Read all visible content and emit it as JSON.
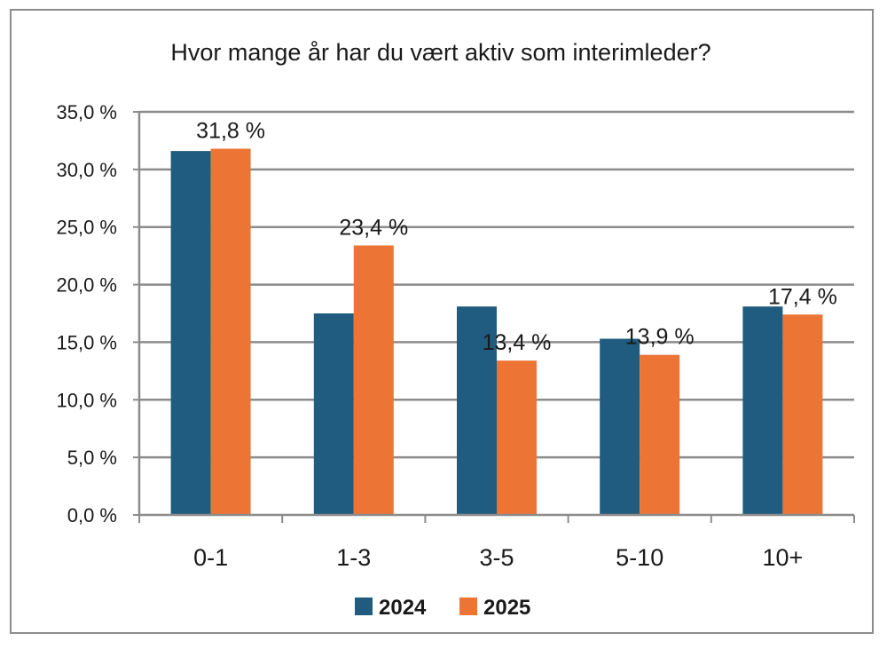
{
  "chart_data": {
    "type": "bar",
    "title": "Hvor mange år har du vært aktiv som interimleder?",
    "categories": [
      "0-1",
      "1-3",
      "3-5",
      "5-10",
      "10+"
    ],
    "series": [
      {
        "name": "2024",
        "color": "#1f5c7f",
        "values": [
          31.6,
          17.5,
          18.1,
          15.3,
          18.1
        ],
        "data_labels": [
          "",
          "",
          "",
          "",
          ""
        ]
      },
      {
        "name": "2025",
        "color": "#ec7434",
        "values": [
          31.8,
          23.4,
          13.4,
          13.9,
          17.4
        ],
        "data_labels": [
          "31,8 %",
          "23,4 %",
          "13,4 %",
          "13,9 %",
          "17,4 %"
        ]
      }
    ],
    "ylim": [
      0,
      35
    ],
    "yticks": [
      0,
      5,
      10,
      15,
      20,
      25,
      30,
      35
    ],
    "ytick_labels": [
      "0,0 %",
      "5,0 %",
      "10,0 %",
      "15,0 %",
      "20,0 %",
      "25,0 %",
      "30,0 %",
      "35,0 %"
    ],
    "grid": true,
    "legend_position": "bottom",
    "xlabel": "",
    "ylabel": ""
  }
}
